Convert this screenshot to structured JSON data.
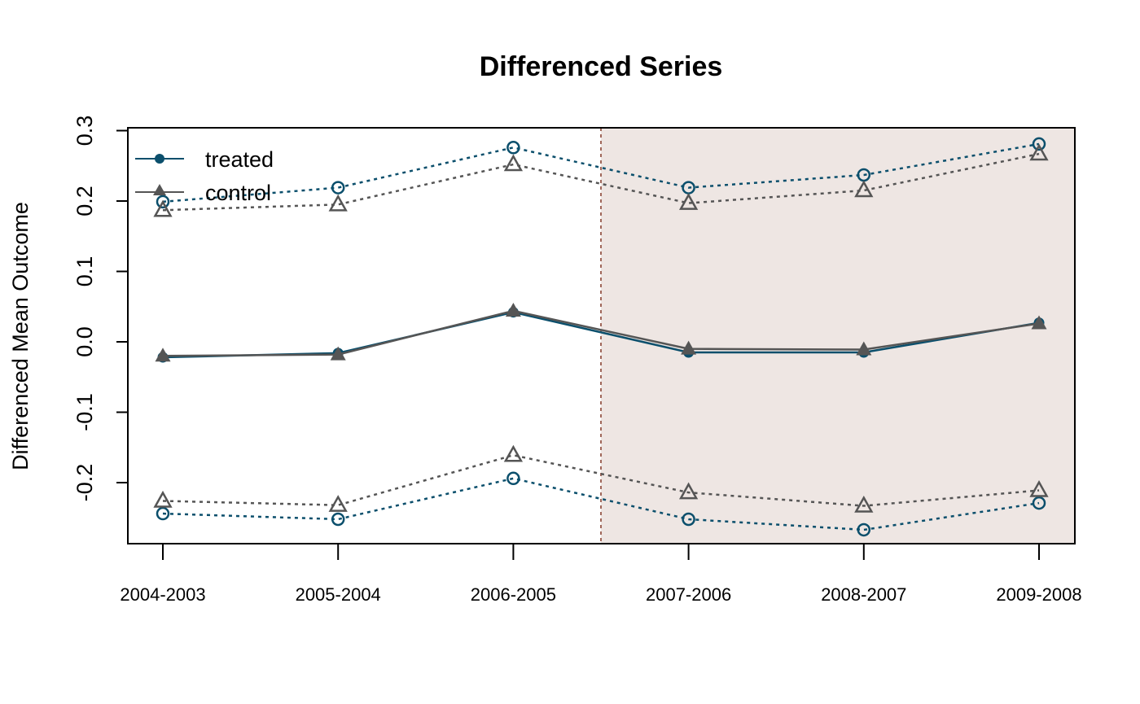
{
  "chart_data": {
    "type": "line",
    "title": "Differenced Series",
    "xlabel": "",
    "ylabel": "Differenced Mean Outcome",
    "categories": [
      "2004-2003",
      "2005-2004",
      "2006-2005",
      "2007-2006",
      "2008-2007",
      "2009-2008"
    ],
    "y_ticks": [
      -0.2,
      -0.1,
      0.0,
      0.1,
      0.2,
      0.3
    ],
    "y_tick_labels": [
      "-0.2",
      "-0.1",
      "0.0",
      "0.1",
      "0.2",
      "0.3"
    ],
    "ylim": [
      -0.29,
      0.3
    ],
    "treatment_start_between": [
      "2006-2005",
      "2007-2006"
    ],
    "post_period_shaded": true,
    "legend_position": "top-left",
    "colors": {
      "treated": "#0b4f6c",
      "control": "#555555",
      "shade": "#eee6e3",
      "vline": "#a0675a"
    },
    "series": [
      {
        "name": "treated",
        "role": "mean",
        "values": [
          -0.022,
          -0.016,
          0.042,
          -0.015,
          -0.015,
          0.027
        ]
      },
      {
        "name": "control",
        "role": "mean",
        "values": [
          -0.02,
          -0.018,
          0.044,
          -0.01,
          -0.011,
          0.026
        ]
      },
      {
        "role": "treated-upper",
        "values": [
          0.199,
          0.219,
          0.276,
          0.219,
          0.237,
          0.281
        ]
      },
      {
        "role": "treated-lower",
        "values": [
          -0.244,
          -0.252,
          -0.194,
          -0.252,
          -0.267,
          -0.229
        ]
      },
      {
        "role": "control-upper",
        "values": [
          0.187,
          0.195,
          0.252,
          0.197,
          0.215,
          0.267
        ]
      },
      {
        "role": "control-lower",
        "values": [
          -0.226,
          -0.232,
          -0.161,
          -0.214,
          -0.233,
          -0.211
        ]
      }
    ]
  }
}
